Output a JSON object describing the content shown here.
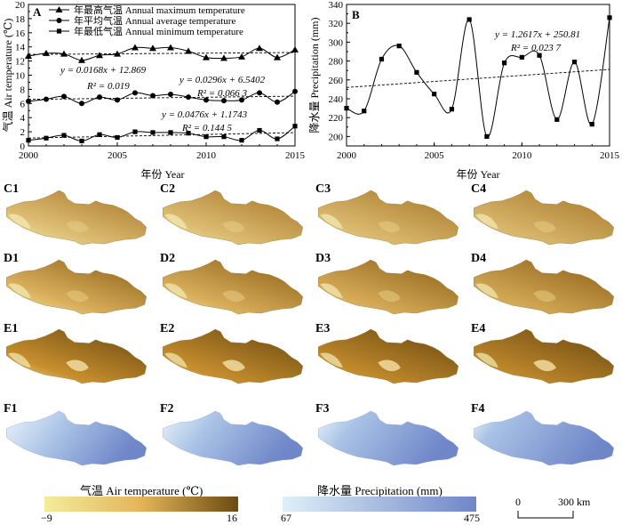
{
  "chart_data": [
    {
      "panel": "A",
      "type": "line",
      "ylabel": "气温 Air temperature (℃)",
      "xlabel": "年份 Year",
      "ylim": [
        0,
        20
      ],
      "xlim": [
        2000,
        2015
      ],
      "yticks": [
        "0",
        "2",
        "4",
        "6",
        "8",
        "10",
        "12",
        "14",
        "16",
        "18",
        "20"
      ],
      "xticks": [
        "2000",
        "2005",
        "2010",
        "2015"
      ],
      "legend_position": "top",
      "x": [
        2000,
        2001,
        2002,
        2003,
        2004,
        2005,
        2006,
        2007,
        2008,
        2009,
        2010,
        2011,
        2012,
        2013,
        2014,
        2015
      ],
      "series": [
        {
          "name": "年最高气温 Annual maximum temperature",
          "marker": "triangle",
          "values": [
            12.7,
            13.1,
            13.0,
            12.1,
            12.8,
            13.0,
            13.9,
            13.8,
            13.9,
            13.4,
            12.5,
            12.4,
            12.6,
            13.8,
            12.5,
            13.6
          ],
          "equation": "y = 0.0168x + 12.869",
          "r2": "R² = 0.019"
        },
        {
          "name": "年平均气温 Annual average temperature",
          "marker": "circle",
          "values": [
            6.3,
            6.6,
            7.0,
            6.0,
            6.9,
            6.5,
            7.5,
            7.1,
            7.3,
            6.9,
            6.5,
            6.4,
            6.5,
            7.5,
            6.2,
            7.7
          ],
          "equation": "y = 0.0296x + 6.5402",
          "r2": "R² = 0.066 3"
        },
        {
          "name": "年最低气温 Annual minimum temperature",
          "marker": "square",
          "values": [
            0.8,
            1.1,
            1.5,
            0.7,
            1.6,
            1.2,
            2.0,
            1.9,
            1.9,
            1.8,
            1.3,
            1.3,
            0.8,
            2.2,
            1.0,
            2.8
          ],
          "equation": "y = 0.0476x + 1.1743",
          "r2": "R² = 0.144 5"
        }
      ]
    },
    {
      "panel": "B",
      "type": "line",
      "ylabel": "降水量 Precipitation (mm)",
      "xlabel": "年份 Year",
      "ylim": [
        190,
        340
      ],
      "xlim": [
        2000,
        2015
      ],
      "yticks": [
        "200",
        "220",
        "240",
        "260",
        "280",
        "300",
        "320",
        "340"
      ],
      "xticks": [
        "2000",
        "2005",
        "2010",
        "2015"
      ],
      "x": [
        2000,
        2001,
        2002,
        2003,
        2004,
        2005,
        2006,
        2007,
        2008,
        2009,
        2010,
        2011,
        2012,
        2013,
        2014,
        2015
      ],
      "series": [
        {
          "name": "",
          "marker": "square",
          "values": [
            230,
            227,
            282,
            296,
            268,
            245,
            229,
            324,
            200,
            278,
            284,
            286,
            218,
            279,
            213,
            326
          ],
          "equation": "y = 1.2617x + 250.81",
          "r2": "R² = 0.023 7"
        }
      ]
    }
  ],
  "maps": {
    "rows": [
      {
        "labels": [
          "C1",
          "C2",
          "C3",
          "C4"
        ],
        "kind": "temp",
        "variant": "c"
      },
      {
        "labels": [
          "D1",
          "D2",
          "D3",
          "D4"
        ],
        "kind": "temp",
        "variant": "d"
      },
      {
        "labels": [
          "E1",
          "E2",
          "E3",
          "E4"
        ],
        "kind": "temp",
        "variant": "e"
      },
      {
        "labels": [
          "F1",
          "F2",
          "F3",
          "F4"
        ],
        "kind": "precip",
        "variant": "f"
      }
    ]
  },
  "legends": {
    "temperature": {
      "title": "气温 Air temperature (℃)",
      "min": "−9",
      "max": "16",
      "colors": [
        "#f4ec9a",
        "#e3b45a",
        "#6b4a12"
      ]
    },
    "precipitation": {
      "title": "降水量 Precipitation (mm)",
      "min": "67",
      "max": "475",
      "colors": [
        "#dff0f8",
        "#6f86c8"
      ]
    },
    "scale": {
      "zero": "0",
      "label": "300 km"
    }
  }
}
